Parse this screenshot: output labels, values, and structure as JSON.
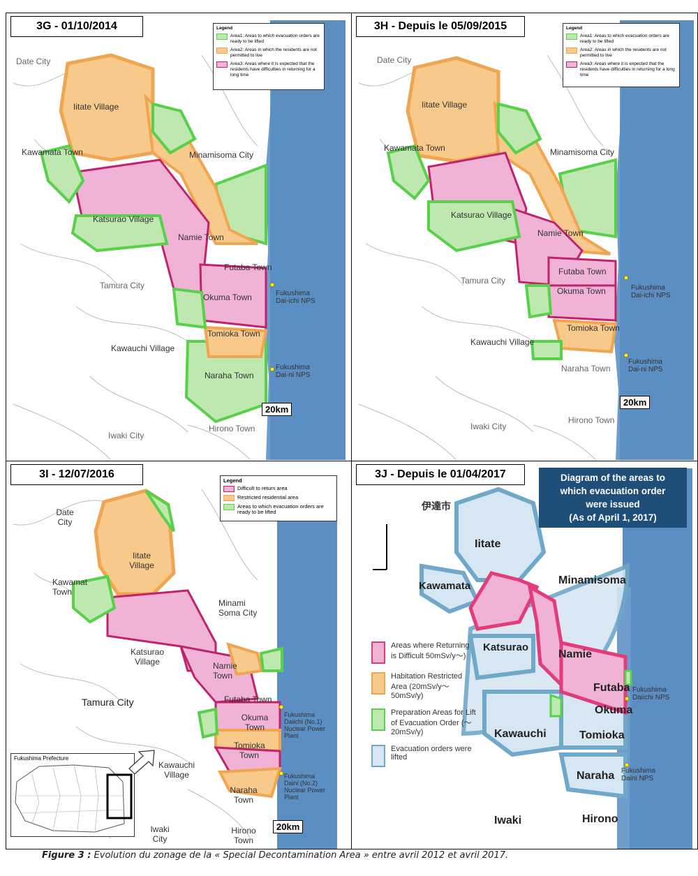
{
  "colors": {
    "restricted": "#f7c98b",
    "restricted_border": "#f0a650",
    "difficult": "#f0b3d6",
    "difficult_border": "#c0226e",
    "ready": "#bfe8b0",
    "ready_border": "#58d04a",
    "lifted": "#d6e6f2",
    "lifted_border": "#6fa8c8",
    "ocean": "#5b8ec2",
    "banner": "#1f4e79"
  },
  "panel_g": {
    "title": "3G - 01/10/2014",
    "legend": {
      "heading": "Legend",
      "items": [
        "Area1: Areas to which evacuation orders are ready to be lifted",
        "Area2: Areas in which the residents are not permitted to live",
        "Area3: Areas where it is expected that the residents have difficulties in returning for a long time"
      ]
    },
    "labels": {
      "date": "Date City",
      "iitate": "Iitate Village",
      "kawamata": "Kawamata Town",
      "minamisoma": "Minamisoma City",
      "katsurao": "Katsurao Village",
      "namie": "Namie Town",
      "futaba": "Futaba Town",
      "tamura": "Tamura City",
      "okuma": "Okuma Town",
      "daiichi": "Fukushima Dai-ichi NPS",
      "kawauchi": "Kawauchi Village",
      "tomioka": "Tomioka Town",
      "naraha": "Naraha Town",
      "daini": "Fukushima Dai-ni NPS",
      "hirono": "Hirono Town",
      "iwaki": "Iwaki City"
    },
    "scale": "20km"
  },
  "panel_h": {
    "title": "3H - Depuis le 05/09/2015",
    "legend": {
      "heading": "Legend",
      "items": [
        "Area1: Areas to which evacuation orders are ready to be lifted",
        "Area2: Areas in which the residents are not permitted to live",
        "Area3: Areas where it is expected that the residents have difficulties in returning for a long time"
      ]
    },
    "labels": {
      "date": "Date City",
      "iitate": "Iitate Village",
      "kawamata": "Kawamata Town",
      "minamisoma": "Minamisoma City",
      "katsurao": "Katsurao Village",
      "namie": "Namie Town",
      "tamura": "Tamura City",
      "futaba": "Futaba Town",
      "okuma": "Okuma Town",
      "daiichi": "Fukushima Dai-ichi NPS",
      "tomioka": "Tomioka Town",
      "kawauchi": "Kawauchi Village",
      "daini": "Fukushima Dai-ni NPS",
      "naraha": "Naraha Town",
      "hirono": "Hirono Town",
      "iwaki": "Iwaki City"
    },
    "scale": "20km"
  },
  "panel_i": {
    "title": "3I - 12/07/2016",
    "legend": {
      "heading": "Legend",
      "items": [
        "Difficult to return area",
        "Restricted residential area",
        "Areas to which evacuation orders are ready to be lifted"
      ]
    },
    "labels": {
      "date": "Date City",
      "iitate": "Iitate Village",
      "kawamata": "Kawamat Town",
      "minamisoma": "Minami Soma City",
      "katsurao": "Katsurao Village",
      "namie": "Namie Town",
      "tamura": "Tamura City",
      "futaba": "Futaba Town",
      "okuma": "Okuma Town",
      "daiichi": "Fukushima Daiichi (No.1) Nuclear Power Plant",
      "tomioka": "Tomioka Town",
      "kawauchi": "Kawauchi Village",
      "naraha": "Naraha Town",
      "daini": "Fukushima Daini (No.2) Nuclear Power Plant",
      "hirono": "Hirono Town",
      "iwaki": "Iwaki City"
    },
    "inset_title": "Fukushima Prefecture",
    "scale": "20km"
  },
  "panel_j": {
    "title": "3J - Depuis le 01/04/2017",
    "jp_label": "伊達市",
    "banner": [
      "Diagram of the areas to",
      "which evacuation order",
      "were issued",
      "(As of April 1, 2017)"
    ],
    "legend": [
      "Areas where Returning is Difficult 50mSv/y～)",
      "Habitation Restricted Area (20mSv/y～ 50mSv/y)",
      "Preparation Areas for Lift of Evacuation Order (～20mSv/y)",
      "Evacuation orders were lifted"
    ],
    "labels": {
      "iitate": "Iitate",
      "kawamata": "Kawamata",
      "minamisoma": "Minamisoma",
      "katsurao": "Katsurao",
      "namie": "Namie",
      "futaba": "Futaba",
      "daiichi": "Fukushima Daiichi NPS",
      "okuma": "Okuma",
      "kawauchi": "Kawauchi",
      "tomioka": "Tomioka",
      "naraha": "Naraha",
      "daini": "Fukushima Daini NPS",
      "iwaki": "Iwaki",
      "hirono": "Hirono"
    }
  },
  "caption": {
    "bold": "Figure 3 :",
    "text": " Evolution du zonage de la « Special Decontamination Area » entre avril 2012 et avril 2017."
  }
}
